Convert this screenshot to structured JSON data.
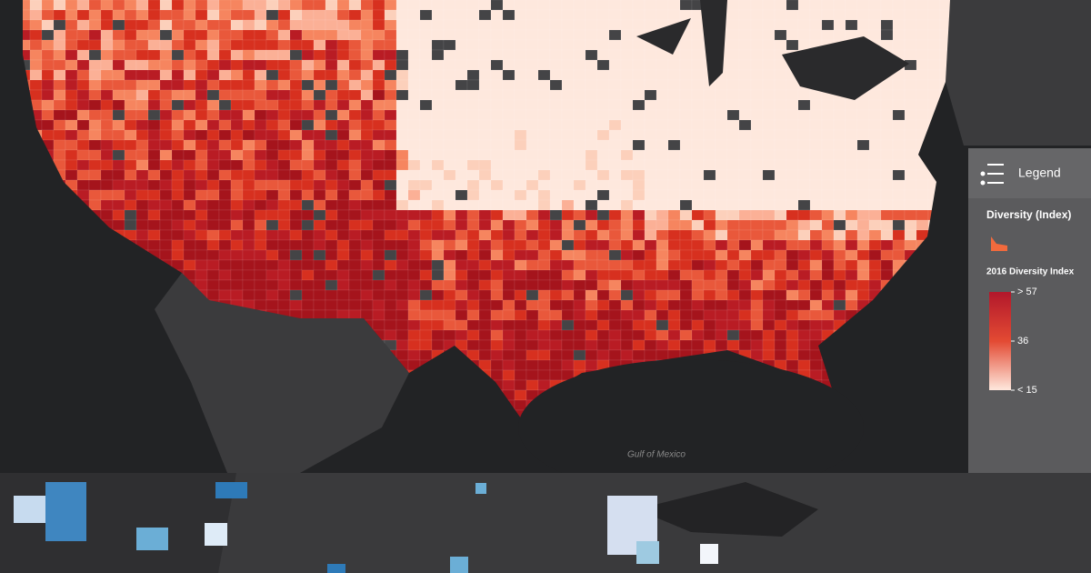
{
  "map": {
    "label_gulf": "Gulf of Mexico"
  },
  "legend": {
    "header": "Legend",
    "layer": "Diversity (Index)",
    "scale_title": "2016 Diversity Index",
    "ticks": [
      {
        "value": 57,
        "label": "> 57"
      },
      36,
      {
        "value": 15,
        "label": "< 15"
      }
    ]
  }
}
